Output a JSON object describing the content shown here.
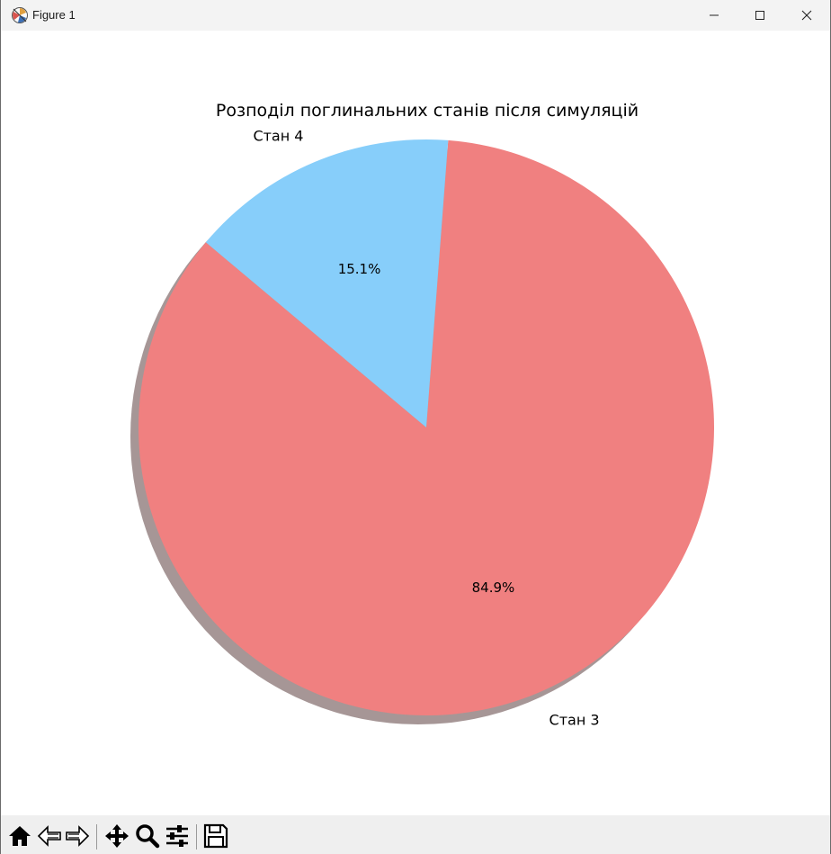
{
  "window": {
    "title": "Figure 1",
    "app_icon": "matplotlib-figure-icon",
    "controls": [
      "minimize-icon",
      "maximize-icon",
      "close-icon"
    ]
  },
  "toolbar": {
    "items": [
      {
        "name": "home-button",
        "icon": "home-icon"
      },
      {
        "name": "back-button",
        "icon": "left-arrow-icon"
      },
      {
        "name": "forward-button",
        "icon": "right-arrow-icon"
      },
      {
        "name": "pan-button",
        "icon": "move-icon"
      },
      {
        "name": "zoom-button",
        "icon": "magnifier-icon"
      },
      {
        "name": "configure-subplots-button",
        "icon": "sliders-icon"
      },
      {
        "name": "save-button",
        "icon": "floppy-disk-icon"
      }
    ]
  },
  "chart_data": {
    "type": "pie",
    "title": "Розподіл поглинальних станів після симуляцій",
    "start_angle_deg": 140,
    "shadow": true,
    "slices": [
      {
        "label": "Стан 3",
        "value": 84.9,
        "pct_label": "84.9%",
        "color": "#f08080"
      },
      {
        "label": "Стан 4",
        "value": 15.1,
        "pct_label": "15.1%",
        "color": "#87cefa"
      }
    ]
  }
}
